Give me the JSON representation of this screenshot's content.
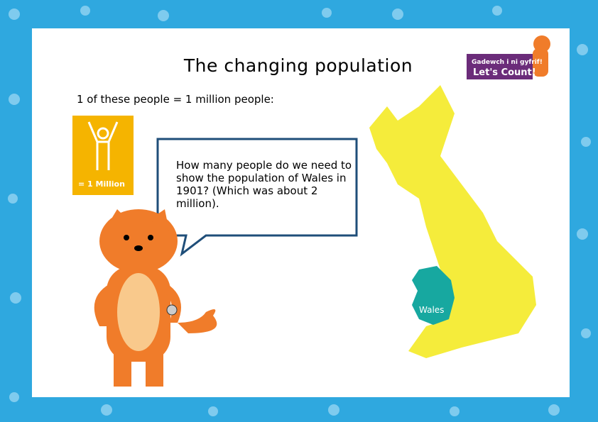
{
  "header": {
    "title": "The changing population",
    "subtitle": "1 of these people = 1 million people:"
  },
  "legend_card": {
    "label": "= 1 Million"
  },
  "speech_bubble": {
    "text": "How many people do we need to show the population of Wales in 1901? (Which was about 2 million)."
  },
  "map": {
    "region_label": "Wales"
  },
  "logo": {
    "line1": "Gadewch i ni gyfrif!",
    "line2": "Let's Count!"
  }
}
